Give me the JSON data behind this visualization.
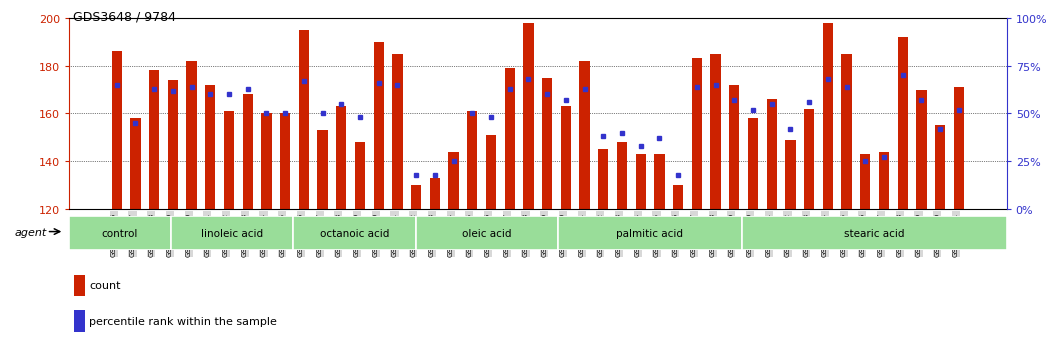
{
  "title": "GDS3648 / 9784",
  "samples": [
    "GSM525196",
    "GSM525197",
    "GSM525198",
    "GSM525199",
    "GSM525200",
    "GSM525201",
    "GSM525202",
    "GSM525203",
    "GSM525204",
    "GSM525205",
    "GSM525206",
    "GSM525207",
    "GSM525208",
    "GSM525209",
    "GSM525210",
    "GSM525211",
    "GSM525212",
    "GSM525213",
    "GSM525214",
    "GSM525215",
    "GSM525216",
    "GSM525217",
    "GSM525218",
    "GSM525219",
    "GSM525220",
    "GSM525221",
    "GSM525222",
    "GSM525223",
    "GSM525224",
    "GSM525225",
    "GSM525226",
    "GSM525227",
    "GSM525228",
    "GSM525229",
    "GSM525230",
    "GSM525231",
    "GSM525232",
    "GSM525233",
    "GSM525234",
    "GSM525235",
    "GSM525236",
    "GSM525237",
    "GSM525238",
    "GSM525239",
    "GSM525240",
    "GSM525241"
  ],
  "bar_heights": [
    186,
    158,
    178,
    174,
    182,
    172,
    161,
    168,
    160,
    160,
    195,
    153,
    163,
    148,
    190,
    185,
    130,
    133,
    144,
    161,
    151,
    179,
    198,
    175,
    163,
    182,
    145,
    148,
    143,
    143,
    130,
    183,
    185,
    172,
    158,
    166,
    149,
    162,
    198,
    185,
    143,
    144,
    192,
    170,
    155,
    171
  ],
  "blue_markers": [
    65,
    45,
    63,
    62,
    64,
    60,
    60,
    63,
    50,
    50,
    67,
    50,
    55,
    48,
    66,
    65,
    18,
    18,
    25,
    50,
    48,
    63,
    68,
    60,
    57,
    63,
    38,
    40,
    33,
    37,
    18,
    64,
    65,
    57,
    52,
    55,
    42,
    56,
    68,
    64,
    25,
    27,
    70,
    57,
    42,
    52
  ],
  "groups": [
    {
      "label": "control",
      "start": 0,
      "end": 5
    },
    {
      "label": "linoleic acid",
      "start": 5,
      "end": 11
    },
    {
      "label": "octanoic acid",
      "start": 11,
      "end": 17
    },
    {
      "label": "oleic acid",
      "start": 17,
      "end": 24
    },
    {
      "label": "palmitic acid",
      "start": 24,
      "end": 33
    },
    {
      "label": "stearic acid",
      "start": 33,
      "end": 46
    }
  ],
  "bar_color": "#cc2200",
  "marker_color": "#3333cc",
  "ylim_left": [
    120,
    200
  ],
  "ylim_right": [
    0,
    100
  ],
  "yticks_left": [
    120,
    140,
    160,
    180,
    200
  ],
  "yticks_right": [
    0,
    25,
    50,
    75,
    100
  ],
  "agent_label": "agent",
  "legend_count": "count",
  "legend_pct": "percentile rank within the sample",
  "group_fill": "#99dd99",
  "tick_label_bg": "#d8d8d8"
}
